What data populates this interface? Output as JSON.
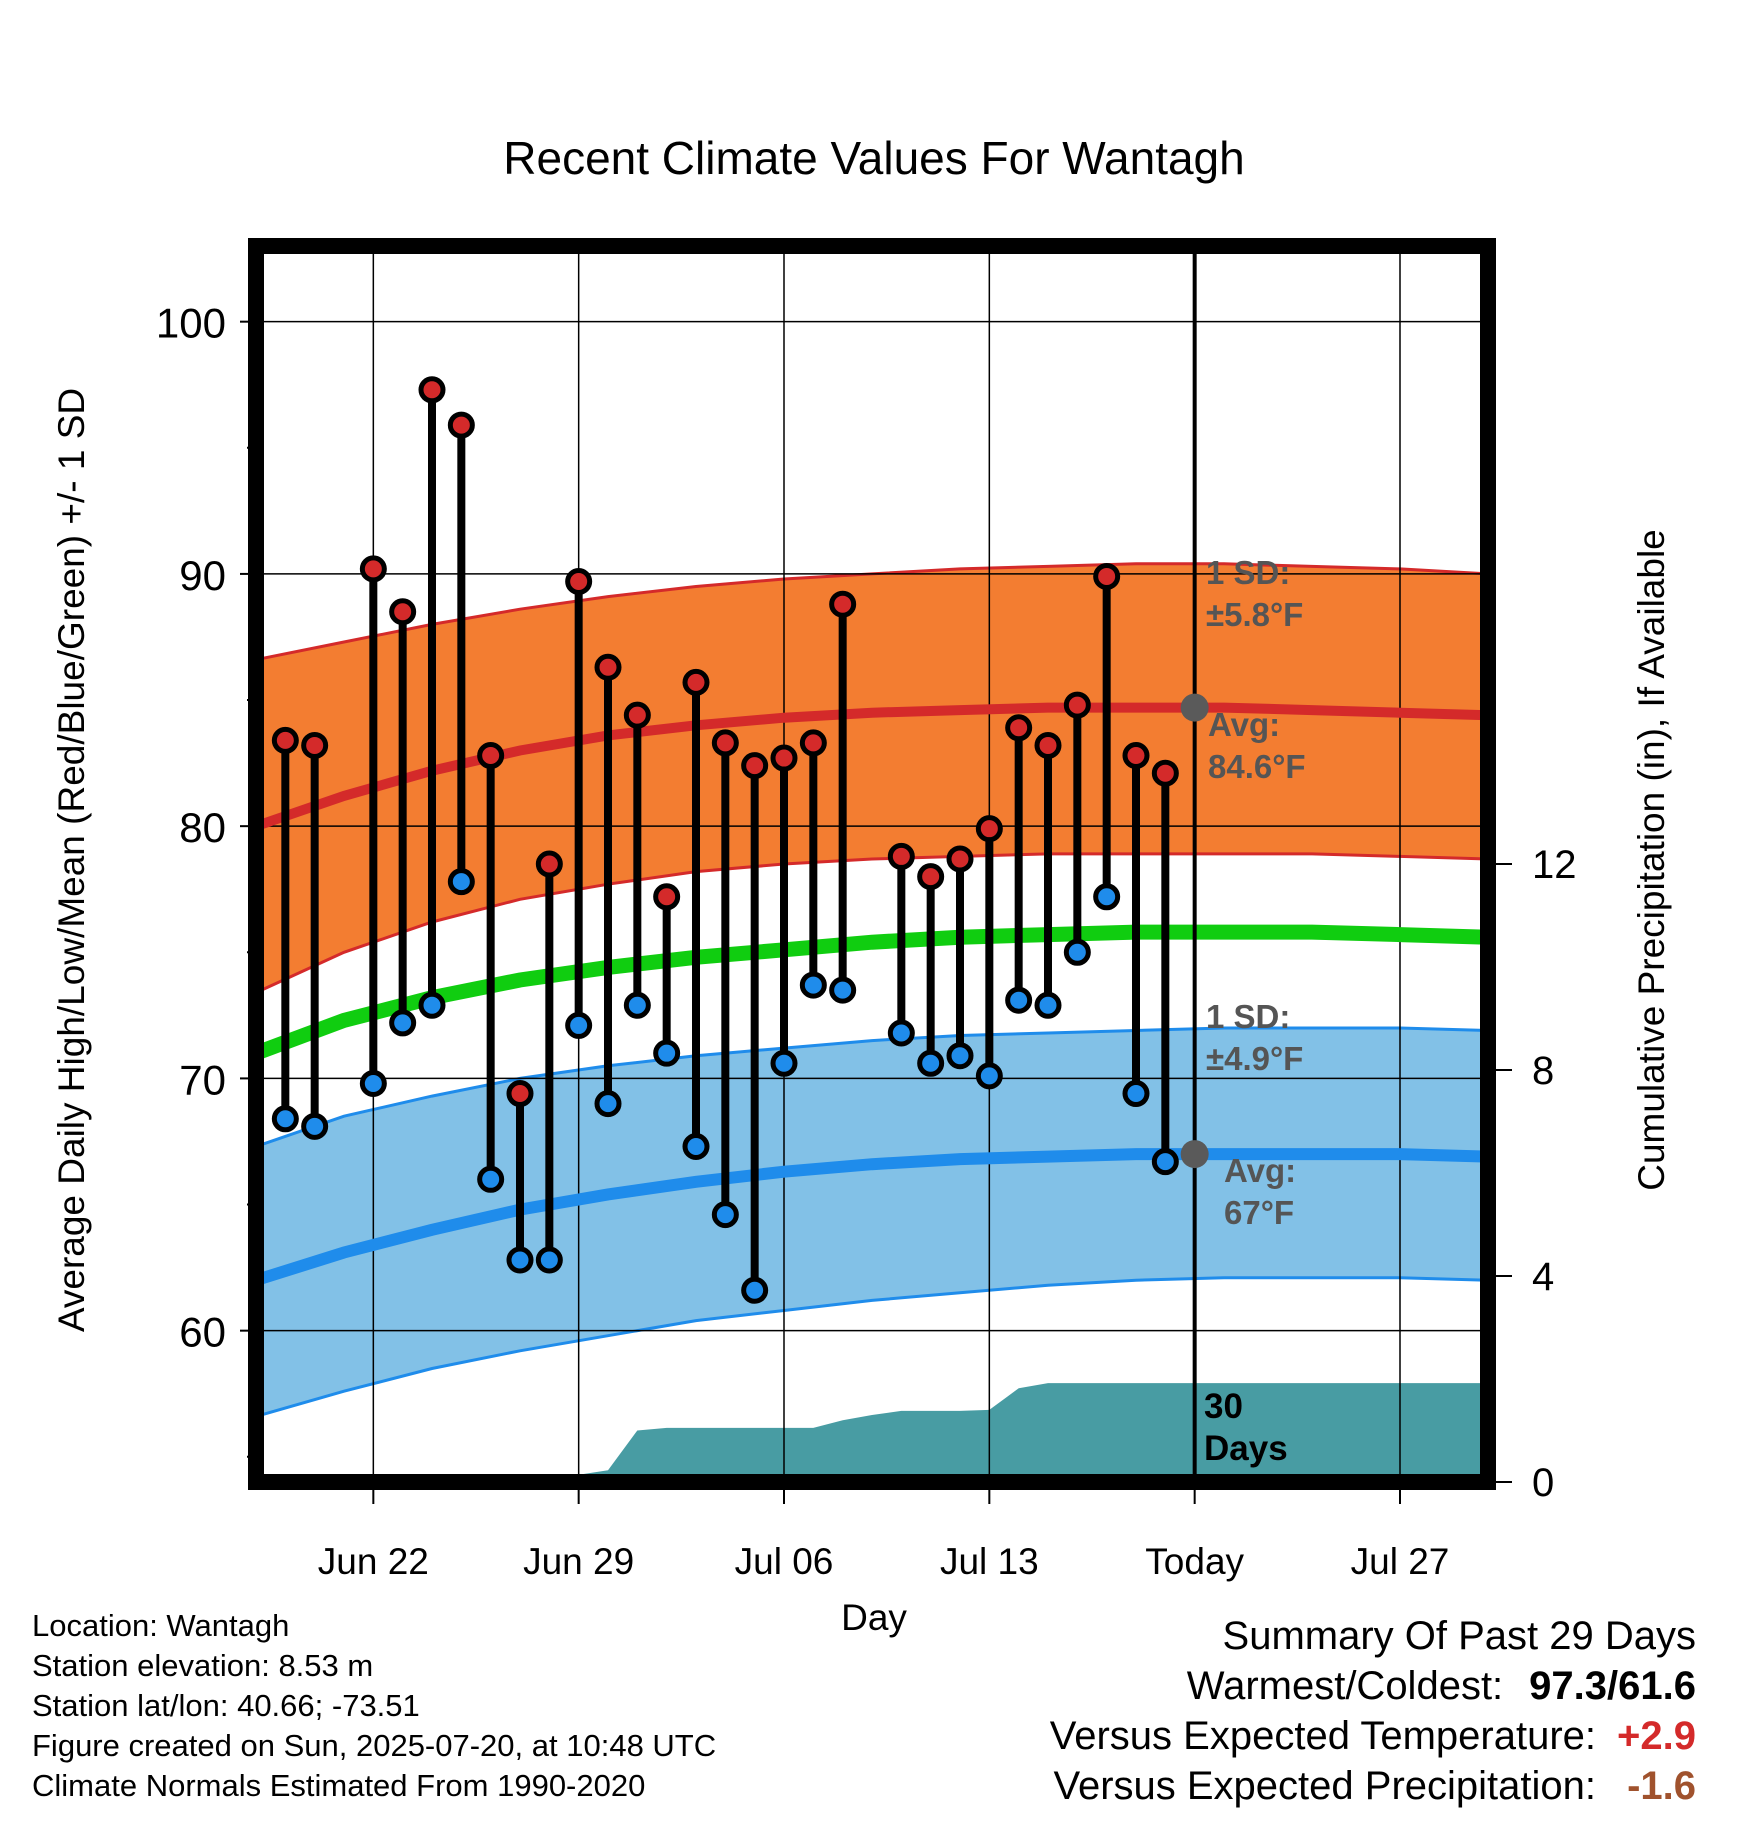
{
  "chart_data": {
    "type": "line",
    "title": "Recent Climate Values For Wantagh",
    "xlabel": "Day",
    "ylabel": "Average Daily High/Low/Mean (Red/Blue/Green) +/- 1 SD",
    "y2label": "Cumulative Precipitation (in), If Available",
    "ylim": [
      54,
      103
    ],
    "y2lim": [
      0,
      24
    ],
    "yticks": [
      60,
      70,
      80,
      90,
      100
    ],
    "y2ticks": [
      0,
      4,
      8,
      12
    ],
    "grid": true,
    "xlim": [
      "2025-06-18",
      "2025-07-30"
    ],
    "xticks": [
      {
        "date": "2025-06-22",
        "label": "Jun 22"
      },
      {
        "date": "2025-06-29",
        "label": "Jun 29"
      },
      {
        "date": "2025-07-06",
        "label": "Jul 06"
      },
      {
        "date": "2025-07-13",
        "label": "Jul 13"
      },
      {
        "date": "2025-07-20",
        "label": "Today"
      },
      {
        "date": "2025-07-27",
        "label": "Jul 27"
      }
    ],
    "today": "2025-07-20",
    "colors": {
      "high": "#d42a2a",
      "high_band": "#f37d31",
      "low": "#1f8ceb",
      "low_band": "#82c1e7",
      "mean": "#10cd10",
      "precip": "#489ca3",
      "today_marker": "#5a5a5a",
      "annotation": "#555555",
      "summary_warm": "#d42a2a",
      "summary_dry": "#a0522d"
    },
    "normals": {
      "dates": [
        "2025-06-18",
        "2025-06-21",
        "2025-06-24",
        "2025-06-27",
        "2025-06-30",
        "2025-07-03",
        "2025-07-06",
        "2025-07-09",
        "2025-07-12",
        "2025-07-15",
        "2025-07-18",
        "2025-07-21",
        "2025-07-24",
        "2025-07-27",
        "2025-07-30"
      ],
      "high_avg": [
        80.0,
        81.2,
        82.2,
        83.0,
        83.6,
        84.0,
        84.3,
        84.5,
        84.6,
        84.7,
        84.7,
        84.7,
        84.6,
        84.5,
        84.4
      ],
      "high_upper": [
        86.6,
        87.3,
        88.0,
        88.6,
        89.1,
        89.5,
        89.8,
        90.0,
        90.2,
        90.3,
        90.4,
        90.4,
        90.3,
        90.2,
        90.0
      ],
      "high_lower": [
        73.4,
        75.0,
        76.2,
        77.1,
        77.7,
        78.2,
        78.5,
        78.7,
        78.8,
        78.9,
        78.9,
        78.9,
        78.9,
        78.8,
        78.7
      ],
      "mean_avg": [
        71.0,
        72.3,
        73.2,
        73.9,
        74.4,
        74.8,
        75.1,
        75.4,
        75.6,
        75.7,
        75.8,
        75.8,
        75.8,
        75.7,
        75.6
      ],
      "low_avg": [
        62.0,
        63.1,
        64.0,
        64.8,
        65.4,
        65.9,
        66.3,
        66.6,
        66.8,
        66.9,
        67.0,
        67.0,
        67.0,
        67.0,
        66.9
      ],
      "low_upper": [
        67.3,
        68.5,
        69.3,
        70.0,
        70.5,
        70.9,
        71.2,
        71.5,
        71.7,
        71.8,
        71.9,
        72.0,
        72.0,
        72.0,
        71.9
      ],
      "low_lower": [
        56.6,
        57.6,
        58.5,
        59.2,
        59.8,
        60.4,
        60.8,
        61.2,
        61.5,
        61.8,
        62.0,
        62.1,
        62.1,
        62.1,
        62.0
      ]
    },
    "series": [
      {
        "dates": [
          "2025-06-19",
          "2025-06-20",
          "2025-06-21",
          "2025-06-22",
          "2025-06-23",
          "2025-06-24",
          "2025-06-25",
          "2025-06-26",
          "2025-06-27",
          "2025-06-28",
          "2025-06-29",
          "2025-06-30",
          "2025-07-01",
          "2025-07-02",
          "2025-07-03",
          "2025-07-04",
          "2025-07-05",
          "2025-07-06",
          "2025-07-07",
          "2025-07-08",
          "2025-07-10",
          "2025-07-11",
          "2025-07-12",
          "2025-07-13",
          "2025-07-14",
          "2025-07-15",
          "2025-07-16",
          "2025-07-17",
          "2025-07-18",
          "2025-07-19"
        ],
        "high": [
          83.4,
          83.2,
          null,
          90.2,
          88.5,
          97.3,
          95.9,
          82.8,
          69.4,
          78.5,
          89.7,
          86.3,
          84.4,
          77.2,
          85.7,
          83.3,
          82.4,
          82.7,
          83.3,
          88.8,
          78.8,
          78.0,
          78.7,
          79.9,
          83.9,
          83.2,
          84.8,
          89.9,
          82.8,
          82.1
        ],
        "low": [
          68.4,
          68.1,
          null,
          69.8,
          72.2,
          72.9,
          77.8,
          66.0,
          62.8,
          62.8,
          72.1,
          69.0,
          72.9,
          71.0,
          67.3,
          64.6,
          61.6,
          70.6,
          73.7,
          73.5,
          71.8,
          70.6,
          70.9,
          70.1,
          73.1,
          72.9,
          75.0,
          77.2,
          69.4,
          66.7
        ]
      }
    ],
    "precip": {
      "dates": [
        "2025-06-18",
        "2025-06-25",
        "2025-06-26",
        "2025-06-27",
        "2025-06-28",
        "2025-06-29",
        "2025-06-30",
        "2025-07-01",
        "2025-07-02",
        "2025-07-03",
        "2025-07-04",
        "2025-07-05",
        "2025-07-06",
        "2025-07-07",
        "2025-07-08",
        "2025-07-09",
        "2025-07-10",
        "2025-07-11",
        "2025-07-12",
        "2025-07-13",
        "2025-07-14",
        "2025-07-15",
        "2025-07-16",
        "2025-07-17",
        "2025-07-18",
        "2025-07-19",
        "2025-07-20",
        "2025-07-30"
      ],
      "values": [
        0.0,
        0.0,
        0.05,
        0.12,
        0.14,
        0.14,
        0.23,
        1.0,
        1.05,
        1.05,
        1.05,
        1.05,
        1.05,
        1.05,
        1.2,
        1.3,
        1.38,
        1.38,
        1.38,
        1.4,
        1.82,
        1.92,
        1.92,
        1.92,
        1.92,
        1.92,
        1.92,
        1.92
      ]
    },
    "annotations": {
      "high_sd": "1 SD:",
      "high_sd_value": "±5.8°F",
      "high_avg_label": "Avg:",
      "high_avg_value": "84.6°F",
      "low_sd": "1 SD:",
      "low_sd_value": "±4.9°F",
      "low_avg_label": "Avg:",
      "low_avg_value": "67°F",
      "precip_period_1": "30",
      "precip_period_2": "Days"
    }
  },
  "info": {
    "location": "Location: Wantagh",
    "elevation": "Station elevation: 8.53 m",
    "latlon": "Station lat/lon: 40.66; -73.51",
    "created": "Figure created on Sun, 2025-07-20, at 10:48 UTC",
    "normals": "Climate Normals Estimated From 1990-2020"
  },
  "summary": {
    "title": "Summary Of Past 29 Days",
    "warm_cold_label": "Warmest/Coldest:",
    "warm_cold_value": "97.3/61.6",
    "temp_label": "Versus Expected Temperature:",
    "temp_value": "+2.9",
    "precip_label": "Versus Expected Precipitation:",
    "precip_value": "-1.6"
  }
}
